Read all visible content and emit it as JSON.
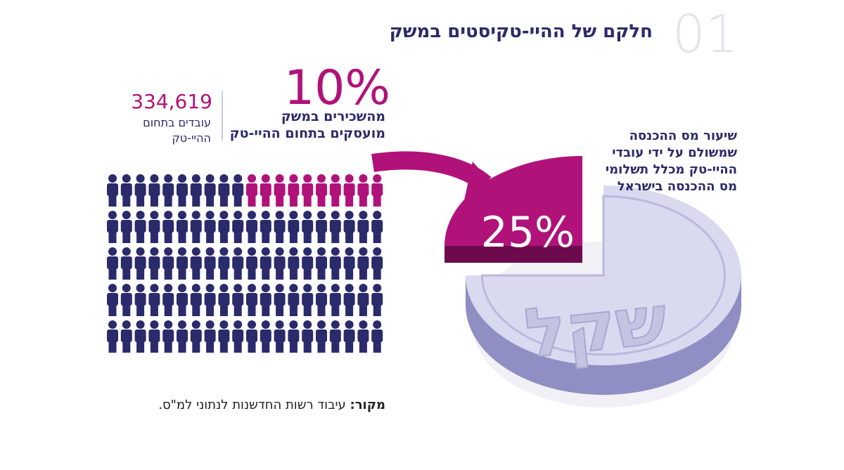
{
  "header": {
    "number": "01",
    "title": "חלקם של ההיי-טקיסטים במשק"
  },
  "employees": {
    "count": "334,619",
    "lines": [
      "עובדים בתחום",
      "ההיי-טק"
    ]
  },
  "share_employed": {
    "value": 10,
    "label": "10%",
    "lines": [
      "מהשכירים במשק",
      "מועסקים בתחום ההיי-טק"
    ]
  },
  "share_tax": {
    "value": 25,
    "label": "25%",
    "lines": [
      "שיעור מס ההכנסה",
      "שמשולם על ידי עובדי",
      "ההיי-טק מכלל תשלומי",
      "מס ההכנסה בישראל"
    ]
  },
  "coin": {
    "label": "שקל"
  },
  "source": {
    "label": "מקור:",
    "text": " עיבוד רשות החדשנות לנתוני למ\"ס."
  }
}
